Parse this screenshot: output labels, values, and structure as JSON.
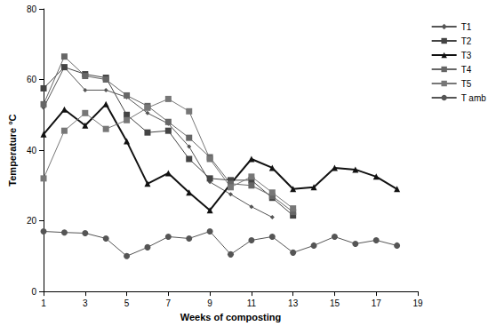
{
  "chart_data": {
    "type": "line",
    "x_label": "Weeks of composting",
    "y_label": "Temperature °C",
    "x": [
      1,
      2,
      3,
      4,
      5,
      6,
      7,
      8,
      9,
      10,
      11,
      12,
      13,
      14,
      15,
      16,
      17,
      18
    ],
    "series": [
      {
        "name": "T1",
        "color": "#555555",
        "marker": "diamond",
        "values": [
          52,
          63.5,
          57,
          57,
          55,
          50.5,
          47.5,
          41,
          31,
          27.5,
          24,
          21,
          null,
          null,
          null,
          null,
          null,
          null
        ]
      },
      {
        "name": "T2",
        "color": "#444444",
        "marker": "square",
        "values": [
          57.5,
          63.5,
          61.5,
          60.5,
          50,
          45,
          45.5,
          37.5,
          32,
          31.5,
          31.5,
          26.5,
          21.5,
          null,
          null,
          null,
          null,
          null
        ]
      },
      {
        "name": "T3",
        "color": "#111111",
        "marker": "triangle",
        "values": [
          44.5,
          51.5,
          47,
          53,
          42.5,
          30.5,
          33.5,
          28,
          23,
          30.5,
          37.5,
          35,
          29,
          29.5,
          35,
          34.5,
          32.5,
          29
        ]
      },
      {
        "name": "T4",
        "color": "#666666",
        "marker": "square",
        "values": [
          53,
          66.5,
          61,
          60,
          55.5,
          52.5,
          48,
          43.5,
          38,
          30.5,
          30,
          27,
          22.5,
          null,
          null,
          null,
          null,
          null
        ]
      },
      {
        "name": "T5",
        "color": "#777777",
        "marker": "square",
        "values": [
          32,
          45.5,
          50.5,
          46,
          48.5,
          52,
          54.5,
          51,
          37.5,
          29.5,
          32.5,
          28,
          23.5,
          null,
          null,
          null,
          null,
          null
        ]
      },
      {
        "name": "T amb",
        "color": "#555555",
        "marker": "circle",
        "values": [
          17,
          16.7,
          16.5,
          15,
          10,
          12.5,
          15.5,
          15,
          17,
          10.5,
          14.5,
          15.5,
          11,
          13,
          15.5,
          13.5,
          14.5,
          13
        ]
      }
    ],
    "xlim": [
      1,
      19
    ],
    "xticks": [
      1,
      3,
      5,
      7,
      9,
      11,
      13,
      15,
      17,
      19
    ],
    "ylim": [
      0,
      80
    ],
    "yticks": [
      0,
      20,
      40,
      60,
      80
    ],
    "grid": false,
    "legend": "right"
  }
}
